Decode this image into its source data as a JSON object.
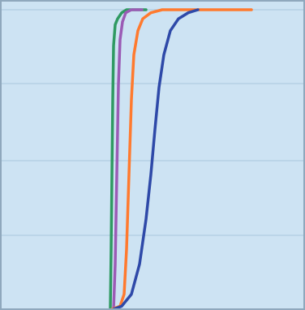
{
  "chart_data": {
    "type": "line",
    "title": "",
    "xlabel": "",
    "ylabel": "",
    "xlim": [
      0,
      376
    ],
    "ylim": [
      0,
      100
    ],
    "grid": "horizontal",
    "legend": "none",
    "background_color": "#cde3f3",
    "series": [
      {
        "color": "#2f9a62",
        "points": [
          [
            136,
            0
          ],
          [
            137,
            20
          ],
          [
            138,
            45
          ],
          [
            139,
            70
          ],
          [
            140,
            88
          ],
          [
            142,
            95
          ],
          [
            145,
            97
          ],
          [
            150,
            99
          ],
          [
            156,
            100
          ],
          [
            180,
            100
          ]
        ]
      },
      {
        "color": "#9b5bb5",
        "points": [
          [
            140,
            0
          ],
          [
            142,
            15
          ],
          [
            144,
            45
          ],
          [
            146,
            75
          ],
          [
            148,
            90
          ],
          [
            151,
            96
          ],
          [
            155,
            99
          ],
          [
            162,
            100
          ],
          [
            175,
            100
          ]
        ]
      },
      {
        "color": "#ff7a2e",
        "points": [
          [
            138,
            0
          ],
          [
            148,
            1
          ],
          [
            153,
            5
          ],
          [
            156,
            20
          ],
          [
            159,
            45
          ],
          [
            162,
            70
          ],
          [
            165,
            85
          ],
          [
            170,
            93
          ],
          [
            176,
            97
          ],
          [
            186,
            99
          ],
          [
            200,
            100
          ],
          [
            310,
            100
          ]
        ]
      },
      {
        "color": "#2e49a8",
        "points": [
          [
            140,
            0
          ],
          [
            150,
            1
          ],
          [
            162,
            5
          ],
          [
            172,
            15
          ],
          [
            180,
            30
          ],
          [
            186,
            45
          ],
          [
            191,
            60
          ],
          [
            196,
            74
          ],
          [
            202,
            85
          ],
          [
            210,
            93
          ],
          [
            220,
            97
          ],
          [
            232,
            99
          ],
          [
            244,
            100
          ]
        ]
      }
    ]
  }
}
